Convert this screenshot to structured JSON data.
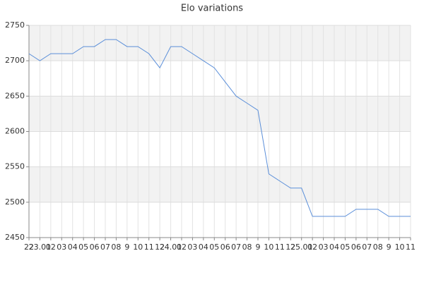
{
  "chart_data": {
    "type": "line",
    "title": "Elo variations",
    "categories": [
      "22",
      "23.01",
      "02",
      "03",
      "04",
      "05",
      "06",
      "07",
      "08",
      "9",
      "10",
      "11",
      "12",
      "24.01",
      "02",
      "03",
      "04",
      "05",
      "06",
      "07",
      "08",
      "9",
      "10",
      "11",
      "12",
      "25.01",
      "02",
      "03",
      "04",
      "05",
      "06",
      "07",
      "08",
      "9",
      "10",
      "11"
    ],
    "series": [
      {
        "name": "Elo",
        "color": "#5b8fd9",
        "values": [
          2710,
          2700,
          2710,
          2710,
          2710,
          2720,
          2720,
          2730,
          2730,
          2720,
          2720,
          2710,
          2690,
          2720,
          2720,
          2710,
          2700,
          2690,
          2670,
          2650,
          2640,
          2630,
          2540,
          2530,
          2520,
          2520,
          2480,
          2480,
          2480,
          2480,
          2490,
          2490,
          2490,
          2480,
          2480,
          2480
        ]
      }
    ],
    "ylim": [
      2450,
      2750
    ],
    "yticks": [
      2450,
      2500,
      2550,
      2600,
      2650,
      2700,
      2750
    ],
    "grid": true
  }
}
